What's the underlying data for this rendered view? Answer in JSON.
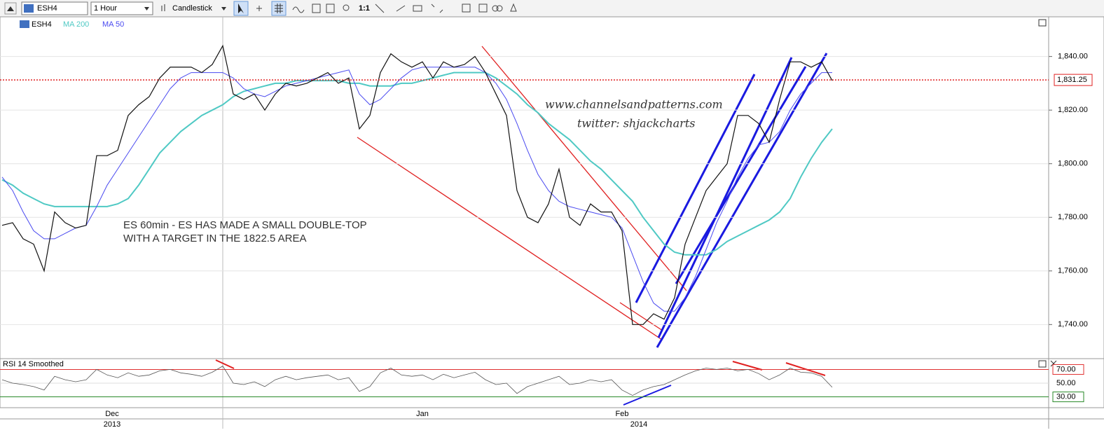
{
  "toolbar": {
    "symbol": "ESH4",
    "interval": "1 Hour",
    "chart_style": "Candlestick",
    "zoom": "1:1"
  },
  "annotations": {
    "note_line1": "ES 60min - ES HAS MADE A SMALL DOUBLE-TOP",
    "note_line2": "WITH A TARGET IN THE 1822.5 AREA",
    "website": "www.channelsandpatterns.com",
    "twitter": "twitter: shjackcharts"
  },
  "year_labels": [
    "2013",
    "2014"
  ],
  "chart_data": [
    {
      "type": "line",
      "categories": [
        null,
        null,
        null,
        null,
        null,
        null,
        null,
        null,
        null,
        null,
        null,
        "Dec",
        null,
        null,
        null,
        null,
        null,
        null,
        null,
        null,
        null,
        null,
        null,
        null,
        null,
        null,
        null,
        null,
        null,
        null,
        null,
        null,
        null,
        null,
        null,
        null,
        null,
        null,
        null,
        null,
        "Jan",
        null,
        null,
        null,
        null,
        null,
        null,
        null,
        null,
        null,
        null,
        null,
        null,
        null,
        null,
        null,
        null,
        null,
        null,
        "Feb",
        null,
        null,
        null,
        null,
        null,
        null,
        null,
        null,
        null,
        null,
        null,
        null,
        null,
        null,
        null,
        null,
        null,
        null,
        null,
        null
      ],
      "series": [
        {
          "name": "ESH4",
          "color": "#111111",
          "values": [
            1777,
            1778,
            1772,
            1770,
            1760,
            1782,
            1778,
            1776,
            1777,
            1803,
            1803,
            1805,
            1818,
            1822,
            1825,
            1832,
            1836,
            1836,
            1836,
            1834,
            1837,
            1844,
            1826,
            1824,
            1826,
            1820,
            1826,
            1830,
            1829,
            1830,
            1832,
            1834,
            1830,
            1832,
            1813,
            1818,
            1834,
            1841,
            1838,
            1836,
            1838,
            1832,
            1838,
            1836,
            1837,
            1840,
            1834,
            1826,
            1818,
            1790,
            1780,
            1778,
            1785,
            1798,
            1780,
            1777,
            1785,
            1782,
            1782,
            1775,
            1740,
            1740,
            1744,
            1742,
            1750,
            1770,
            1780,
            1790,
            1795,
            1800,
            1818,
            1818,
            1815,
            1808,
            1824,
            1838,
            1838,
            1836,
            1838,
            1831
          ]
        },
        {
          "name": "MA 200",
          "color": "#4fc9c4",
          "values": [
            1794,
            1792,
            1789,
            1787,
            1785,
            1784,
            1784,
            1784,
            1784,
            1784,
            1784,
            1785,
            1787,
            1792,
            1798,
            1804,
            1808,
            1812,
            1815,
            1818,
            1820,
            1822,
            1825,
            1827,
            1828,
            1829,
            1830,
            1830,
            1831,
            1831,
            1831,
            1831,
            1831,
            1830,
            1830,
            1829,
            1829,
            1829,
            1830,
            1830,
            1831,
            1832,
            1833,
            1834,
            1834,
            1834,
            1834,
            1832,
            1829,
            1826,
            1822,
            1819,
            1815,
            1812,
            1809,
            1805,
            1801,
            1798,
            1794,
            1790,
            1786,
            1780,
            1775,
            1770,
            1767,
            1766,
            1766,
            1766,
            1768,
            1771,
            1773,
            1775,
            1777,
            1779,
            1782,
            1787,
            1795,
            1802,
            1808,
            1813
          ]
        },
        {
          "name": "MA 50",
          "color": "#4a4af0",
          "values": [
            1795,
            1790,
            1782,
            1775,
            1772,
            1772,
            1774,
            1776,
            1777,
            1784,
            1792,
            1798,
            1804,
            1810,
            1816,
            1822,
            1828,
            1832,
            1834,
            1834,
            1834,
            1834,
            1832,
            1828,
            1826,
            1825,
            1827,
            1829,
            1830,
            1831,
            1832,
            1833,
            1834,
            1835,
            1826,
            1822,
            1824,
            1828,
            1832,
            1835,
            1836,
            1836,
            1836,
            1836,
            1836,
            1836,
            1834,
            1830,
            1824,
            1815,
            1805,
            1796,
            1790,
            1786,
            1784,
            1783,
            1782,
            1781,
            1780,
            1776,
            1766,
            1756,
            1748,
            1745,
            1745,
            1750,
            1758,
            1768,
            1778,
            1786,
            1795,
            1802,
            1807,
            1808,
            1812,
            1820,
            1826,
            1830,
            1834,
            1834
          ]
        }
      ],
      "ylim": [
        1727.8,
        1854.8
      ],
      "yticks": [
        {
          "value": 1740,
          "label": "1,740.00"
        },
        {
          "value": 1760,
          "label": "1,760.00"
        },
        {
          "value": 1780,
          "label": "1,780.00"
        },
        {
          "value": 1800,
          "label": "1,800.00"
        },
        {
          "value": 1820,
          "label": "1,820.00"
        },
        {
          "value": 1840,
          "label": "1,840.00"
        }
      ],
      "last_price": {
        "value": 1831.25,
        "label": "1,831.25"
      },
      "grid": true
    },
    {
      "type": "line",
      "title": "RSI 14 Smoothed",
      "color": "#555555",
      "values": [
        55,
        50,
        48,
        45,
        40,
        60,
        55,
        52,
        55,
        70,
        62,
        58,
        65,
        60,
        62,
        68,
        70,
        65,
        63,
        60,
        66,
        75,
        50,
        48,
        52,
        45,
        55,
        60,
        55,
        58,
        60,
        62,
        55,
        58,
        38,
        45,
        65,
        72,
        62,
        60,
        62,
        55,
        63,
        58,
        62,
        66,
        55,
        48,
        50,
        35,
        45,
        50,
        55,
        60,
        48,
        50,
        55,
        52,
        55,
        40,
        32,
        40,
        45,
        48,
        55,
        62,
        68,
        72,
        70,
        72,
        68,
        70,
        64,
        55,
        62,
        72,
        66,
        65,
        60,
        44
      ],
      "ylim": [
        14.2,
        85.8
      ],
      "yticks": [
        {
          "value": 30,
          "label": "30.00",
          "color": "#2a8a2a"
        },
        {
          "value": 50,
          "label": "50.00",
          "color": "#dddddd"
        },
        {
          "value": 70,
          "label": "70.00",
          "color": "#e03030"
        }
      ]
    }
  ]
}
